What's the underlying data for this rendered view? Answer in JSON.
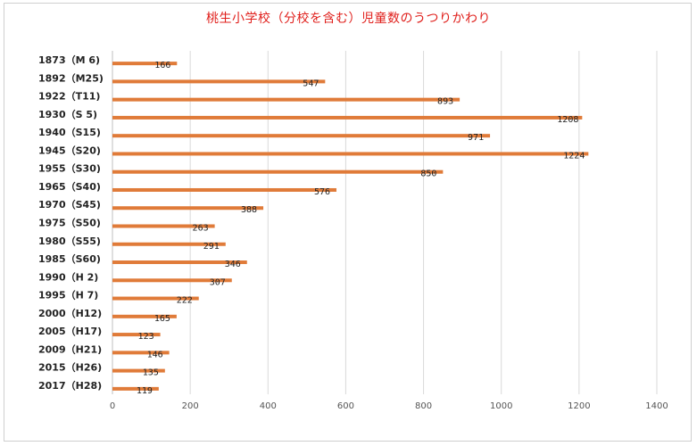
{
  "chart_data": {
    "type": "bar",
    "orientation": "horizontal",
    "title": "桃生小学校（分校を含む）児童数のうつりかわり",
    "categories": [
      "1873（M 6)",
      "1892（M25)",
      "1922（T11)",
      "1930（S 5)",
      "1940（S15)",
      "1945（S20)",
      "1955（S30)",
      "1965（S40)",
      "1970（S45)",
      "1975（S50)",
      "1980（S55)",
      "1985（S60)",
      "1990（H 2)",
      "1995（H 7)",
      "2000（H12)",
      "2005（H17)",
      "2009（H21)",
      "2015（H26)",
      "2017（H28)"
    ],
    "values": [
      166,
      547,
      893,
      1208,
      971,
      1224,
      850,
      576,
      388,
      263,
      291,
      346,
      307,
      222,
      165,
      123,
      146,
      135,
      119
    ],
    "xlim": [
      0,
      1400
    ],
    "xticks": [
      0,
      200,
      400,
      600,
      800,
      1000,
      1200,
      1400
    ],
    "grid": true,
    "bar_color": "#e07b39",
    "title_color": "#e0201c"
  }
}
